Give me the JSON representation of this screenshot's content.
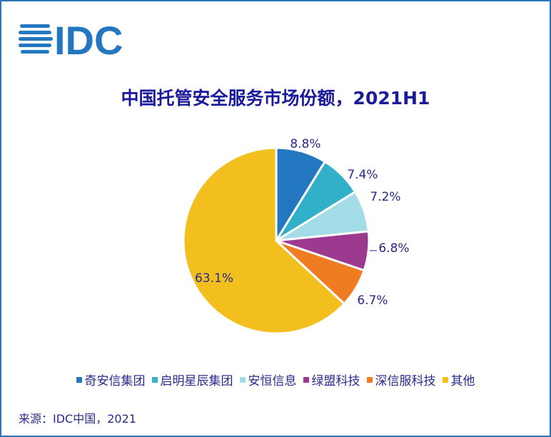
{
  "logo_text": "IDC",
  "chart_data": {
    "type": "pie",
    "title": "中国托管安全服务市场份额，2021H1",
    "start": "top, clockwise",
    "slices": [
      {
        "name": "奇安信集团",
        "value": 8.8,
        "label": "8.8%",
        "color": "#2277c0"
      },
      {
        "name": "启明星辰集团",
        "value": 7.4,
        "label": "7.4%",
        "color": "#33b0c9"
      },
      {
        "name": "安恒信息",
        "value": 7.2,
        "label": "7.2%",
        "color": "#a3dbe6"
      },
      {
        "name": "绿盟科技",
        "value": 6.8,
        "label": "6.8%",
        "color": "#9b3a8e"
      },
      {
        "name": "深信服科技",
        "value": 6.7,
        "label": "6.7%",
        "color": "#f07c22"
      },
      {
        "name": "其他",
        "value": 63.1,
        "label": "63.1%",
        "color": "#f2bf1f"
      }
    ],
    "legend_position": "bottom"
  },
  "source": "来源：IDC中国，2021"
}
